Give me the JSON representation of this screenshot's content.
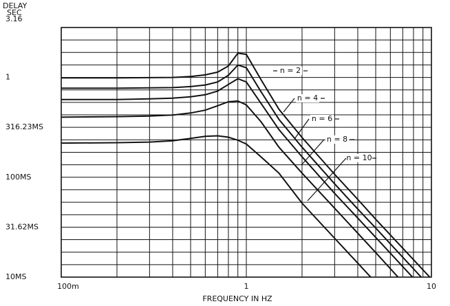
{
  "chart_data": {
    "type": "line",
    "y_label": [
      "DELAY",
      "SEC"
    ],
    "x_label": "FREQUENCY IN HZ",
    "xlog": true,
    "ylog": true,
    "xlim": [
      0.1,
      10
    ],
    "ylim": [
      0.01,
      3.16
    ],
    "xticks": [
      {
        "value": 0.1,
        "label": "100m"
      },
      1,
      10
    ],
    "yticks": [
      3.16,
      1,
      {
        "value": 0.31623,
        "label": "316.23MS"
      },
      {
        "value": 0.1,
        "label": "100MS"
      },
      {
        "value": 0.03162,
        "label": "31.62MS"
      },
      {
        "value": 0.01,
        "label": "10MS"
      }
    ],
    "xgrid": [
      0.1,
      0.2,
      0.3,
      0.4,
      0.5,
      0.6,
      0.7,
      0.8,
      0.9,
      1,
      2,
      3,
      4,
      5,
      6,
      7,
      8,
      9,
      10
    ],
    "ygrid": [
      0.01,
      0.01334,
      0.01778,
      0.02371,
      0.03162,
      0.04217,
      0.05623,
      0.07499,
      0.1,
      0.1334,
      0.1778,
      0.2371,
      0.3162,
      0.4217,
      0.5623,
      0.7499,
      1,
      1.334,
      1.778,
      2.371,
      3.16
    ],
    "color": "#111111",
    "series": [
      {
        "name": "n = 2",
        "x": [
          0.1,
          0.2,
          0.3,
          0.4,
          0.5,
          0.6,
          0.7,
          0.8,
          0.9,
          1,
          1.2,
          1.5,
          2,
          3,
          4,
          5,
          9.8
        ],
        "values": [
          0.99,
          0.99,
          0.995,
          1.0,
          1.02,
          1.06,
          1.13,
          1.3,
          1.75,
          1.7,
          0.95,
          0.48,
          0.25,
          0.107,
          0.06,
          0.038,
          0.01
        ]
      },
      {
        "name": "n = 4",
        "x": [
          0.1,
          0.2,
          0.3,
          0.4,
          0.5,
          0.6,
          0.7,
          0.8,
          0.9,
          1,
          1.2,
          1.5,
          2,
          3,
          4,
          5,
          8.8
        ],
        "values": [
          0.78,
          0.78,
          0.785,
          0.79,
          0.81,
          0.84,
          0.9,
          1.05,
          1.33,
          1.25,
          0.72,
          0.38,
          0.2,
          0.086,
          0.048,
          0.031,
          0.01
        ]
      },
      {
        "name": "n = 6",
        "x": [
          0.1,
          0.2,
          0.3,
          0.4,
          0.5,
          0.6,
          0.7,
          0.8,
          0.9,
          1,
          1.2,
          1.5,
          2,
          3,
          4,
          5,
          7.9
        ],
        "values": [
          0.6,
          0.6,
          0.61,
          0.62,
          0.64,
          0.67,
          0.73,
          0.85,
          0.97,
          0.9,
          0.55,
          0.3,
          0.16,
          0.069,
          0.039,
          0.025,
          0.01
        ]
      },
      {
        "name": "n = 8",
        "x": [
          0.1,
          0.2,
          0.3,
          0.4,
          0.5,
          0.6,
          0.7,
          0.8,
          0.9,
          1,
          1.2,
          1.5,
          2,
          3,
          4,
          5,
          6.6
        ],
        "values": [
          0.4,
          0.405,
          0.41,
          0.42,
          0.44,
          0.47,
          0.52,
          0.57,
          0.58,
          0.53,
          0.36,
          0.2,
          0.11,
          0.049,
          0.0275,
          0.0176,
          0.01
        ]
      },
      {
        "name": "n = 10",
        "x": [
          0.1,
          0.2,
          0.3,
          0.4,
          0.5,
          0.6,
          0.7,
          0.8,
          0.9,
          1,
          1.2,
          1.5,
          2,
          3,
          4,
          4.7
        ],
        "values": [
          0.22,
          0.222,
          0.225,
          0.232,
          0.245,
          0.257,
          0.26,
          0.252,
          0.235,
          0.215,
          0.16,
          0.11,
          0.055,
          0.0245,
          0.0138,
          0.01
        ]
      }
    ]
  }
}
